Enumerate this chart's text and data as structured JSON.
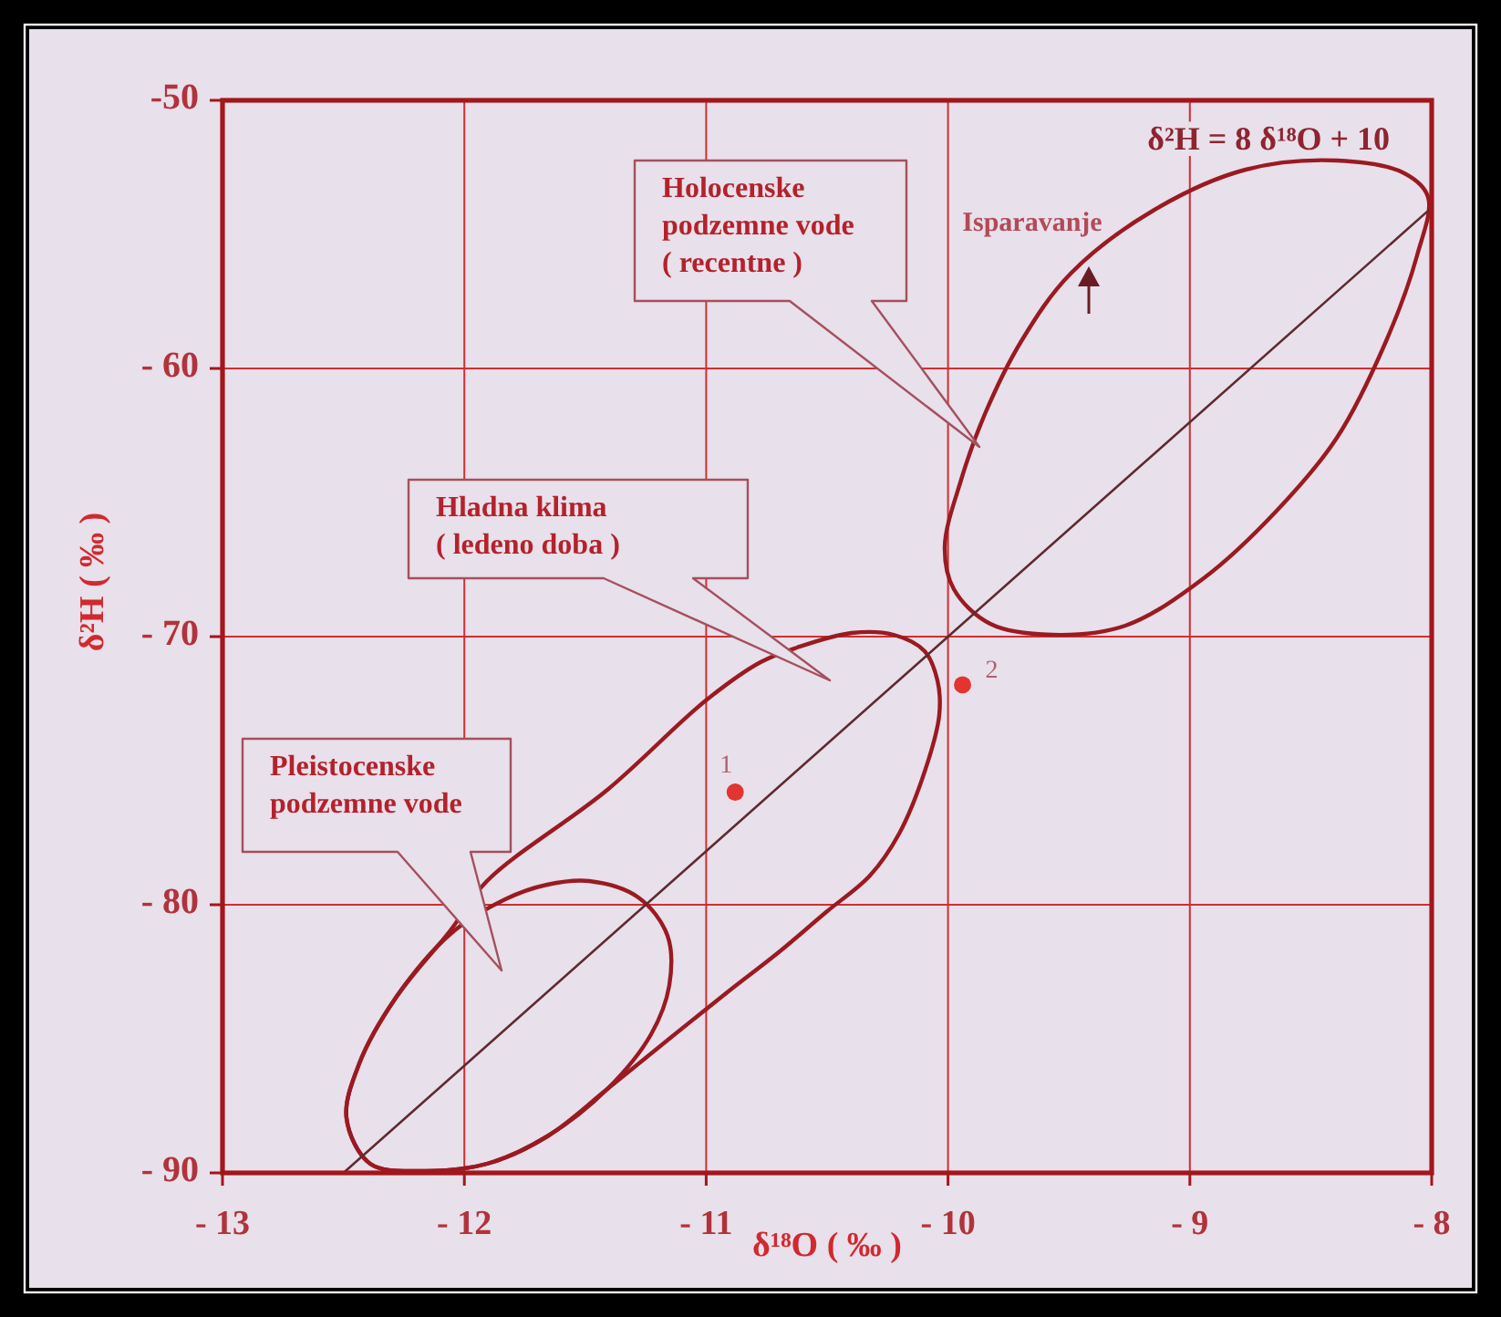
{
  "chart_data": {
    "type": "line",
    "xlabel": "δ¹⁸O ( ‰ )",
    "ylabel": "δ²H ( ‰ )",
    "xlim": [
      -13,
      -8
    ],
    "ylim": [
      -90,
      -50
    ],
    "xticks": [
      {
        "value": -13,
        "label": "- 13"
      },
      {
        "value": -12,
        "label": "- 12"
      },
      {
        "value": -11,
        "label": "- 11"
      },
      {
        "value": -10,
        "label": "- 10"
      },
      {
        "value": -9,
        "label": "- 9"
      },
      {
        "value": -8,
        "label": "- 8"
      }
    ],
    "yticks": [
      {
        "value": -50,
        "label": "-50"
      },
      {
        "value": -60,
        "label": "- 60"
      },
      {
        "value": -70,
        "label": "- 70"
      },
      {
        "value": -80,
        "label": "- 80"
      },
      {
        "value": -90,
        "label": "- 90"
      }
    ],
    "grid": true,
    "series": [
      {
        "name": "δ²H = 8 δ¹⁸O + 10",
        "color": "#5e2a30",
        "x": [
          -12.5,
          -8
        ],
        "values": [
          -90,
          -54
        ]
      },
      {
        "type": "scatter",
        "color": "#e3342f",
        "marker": "circle",
        "x": [
          -10.88,
          -9.94
        ],
        "values": [
          -75.8,
          -71.8
        ]
      }
    ],
    "annotations": [
      "Holocenske\npodzemne vode\n( recentne )",
      "Hladna klima\n( ledeno doba )",
      "Pleistocenske\npodzemne vode",
      "Isparavanje",
      {
        "text": "1",
        "x": -10.88,
        "y": -75.8
      },
      {
        "text": "2",
        "x": -9.94,
        "y": -71.8
      }
    ]
  }
}
